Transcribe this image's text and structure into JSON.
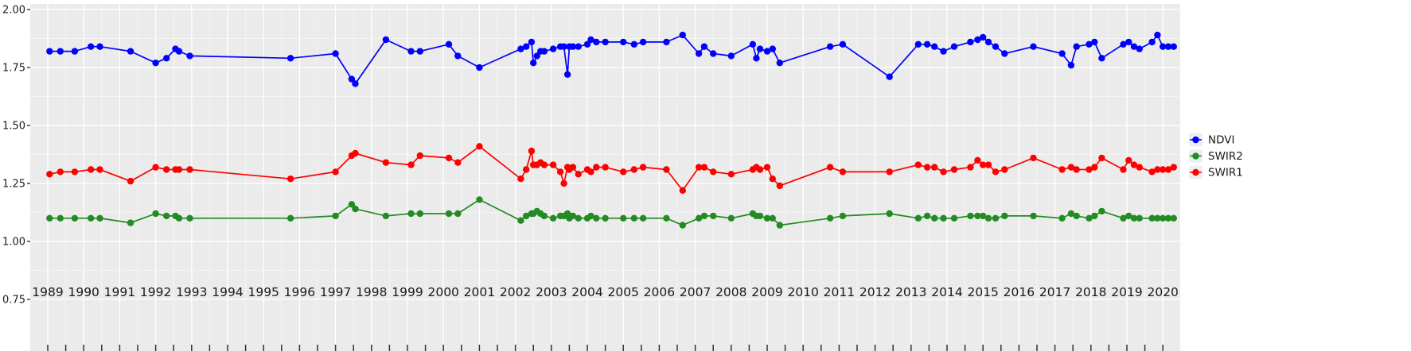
{
  "chart_data": {
    "type": "line",
    "title": "",
    "x": [
      1989.05,
      1989.35,
      1989.75,
      1990.2,
      1990.45,
      1991.3,
      1992.0,
      1992.3,
      1992.55,
      1992.65,
      1992.95,
      1995.75,
      1997.0,
      1997.45,
      1997.55,
      1998.4,
      1999.1,
      1999.35,
      2000.15,
      2000.4,
      2001.0,
      2002.15,
      2002.3,
      2002.45,
      2002.5,
      2002.6,
      2002.7,
      2002.8,
      2003.05,
      2003.25,
      2003.35,
      2003.45,
      2003.5,
      2003.6,
      2003.75,
      2004.0,
      2004.1,
      2004.25,
      2004.5,
      2005.0,
      2005.3,
      2005.55,
      2006.2,
      2006.65,
      2007.1,
      2007.25,
      2007.5,
      2008.0,
      2008.6,
      2008.7,
      2008.8,
      2009.0,
      2009.15,
      2009.35,
      2010.75,
      2011.1,
      2012.4,
      2013.2,
      2013.45,
      2013.65,
      2013.9,
      2014.2,
      2014.65,
      2014.85,
      2015.0,
      2015.15,
      2015.35,
      2015.6,
      2016.4,
      2017.2,
      2017.45,
      2017.6,
      2017.95,
      2018.1,
      2018.3,
      2018.9,
      2019.05,
      2019.2,
      2019.35,
      2019.7,
      2019.85,
      2020.0,
      2020.15,
      2020.3
    ],
    "series": [
      {
        "name": "NDVI",
        "color": "#0000FF",
        "values": [
          1.82,
          1.82,
          1.82,
          1.84,
          1.84,
          1.82,
          1.77,
          1.79,
          1.83,
          1.82,
          1.8,
          1.79,
          1.81,
          1.7,
          1.68,
          1.87,
          1.82,
          1.82,
          1.85,
          1.8,
          1.75,
          1.83,
          1.84,
          1.86,
          1.77,
          1.8,
          1.82,
          1.82,
          1.83,
          1.84,
          1.84,
          1.72,
          1.84,
          1.84,
          1.84,
          1.85,
          1.87,
          1.86,
          1.86,
          1.86,
          1.85,
          1.86,
          1.86,
          1.89,
          1.81,
          1.84,
          1.81,
          1.8,
          1.85,
          1.79,
          1.83,
          1.82,
          1.83,
          1.77,
          1.84,
          1.85,
          1.71,
          1.85,
          1.85,
          1.84,
          1.82,
          1.84,
          1.86,
          1.87,
          1.88,
          1.86,
          1.84,
          1.81,
          1.84,
          1.81,
          1.76,
          1.84,
          1.85,
          1.86,
          1.79,
          1.85,
          1.86,
          1.84,
          1.83,
          1.86,
          1.89,
          1.84,
          1.84,
          1.84
        ]
      },
      {
        "name": "SWIR2",
        "color": "#228B22",
        "values": [
          1.1,
          1.1,
          1.1,
          1.1,
          1.1,
          1.08,
          1.12,
          1.11,
          1.11,
          1.1,
          1.1,
          1.1,
          1.11,
          1.16,
          1.14,
          1.11,
          1.12,
          1.12,
          1.12,
          1.12,
          1.18,
          1.09,
          1.11,
          1.12,
          1.12,
          1.13,
          1.12,
          1.11,
          1.1,
          1.11,
          1.11,
          1.12,
          1.1,
          1.11,
          1.1,
          1.1,
          1.11,
          1.1,
          1.1,
          1.1,
          1.1,
          1.1,
          1.1,
          1.07,
          1.1,
          1.11,
          1.11,
          1.1,
          1.12,
          1.11,
          1.11,
          1.1,
          1.1,
          1.07,
          1.1,
          1.11,
          1.12,
          1.1,
          1.11,
          1.1,
          1.1,
          1.1,
          1.11,
          1.11,
          1.11,
          1.1,
          1.1,
          1.11,
          1.11,
          1.1,
          1.12,
          1.11,
          1.1,
          1.11,
          1.13,
          1.1,
          1.11,
          1.1,
          1.1,
          1.1,
          1.1,
          1.1,
          1.1,
          1.1
        ]
      },
      {
        "name": "SWIR1",
        "color": "#FF0000",
        "values": [
          1.29,
          1.3,
          1.3,
          1.31,
          1.31,
          1.26,
          1.32,
          1.31,
          1.31,
          1.31,
          1.31,
          1.27,
          1.3,
          1.37,
          1.38,
          1.34,
          1.33,
          1.37,
          1.36,
          1.34,
          1.41,
          1.27,
          1.31,
          1.39,
          1.33,
          1.33,
          1.34,
          1.33,
          1.33,
          1.3,
          1.25,
          1.32,
          1.31,
          1.32,
          1.29,
          1.31,
          1.3,
          1.32,
          1.32,
          1.3,
          1.31,
          1.32,
          1.31,
          1.22,
          1.32,
          1.32,
          1.3,
          1.29,
          1.31,
          1.32,
          1.31,
          1.32,
          1.27,
          1.24,
          1.32,
          1.3,
          1.3,
          1.33,
          1.32,
          1.32,
          1.3,
          1.31,
          1.32,
          1.35,
          1.33,
          1.33,
          1.3,
          1.31,
          1.36,
          1.31,
          1.32,
          1.31,
          1.31,
          1.32,
          1.36,
          1.31,
          1.35,
          1.33,
          1.32,
          1.3,
          1.31,
          1.31,
          1.31,
          1.32
        ]
      }
    ],
    "x_axis": {
      "tick_labels": [
        "1989",
        "1990",
        "1991",
        "1992",
        "1993",
        "1994",
        "1995",
        "1996",
        "1997",
        "1998",
        "1999",
        "2000",
        "2001",
        "2002",
        "2003",
        "2004",
        "2005",
        "2006",
        "2007",
        "2008",
        "2009",
        "2010",
        "2011",
        "2012",
        "2013",
        "2014",
        "2015",
        "2016",
        "2017",
        "2018",
        "2019",
        "2020"
      ],
      "range": [
        1988.5,
        2020.5
      ]
    },
    "y_axis": {
      "ticks": [
        2.0,
        1.75,
        1.5,
        1.25,
        1.0,
        0.75
      ],
      "tick_labels": [
        "2.00",
        "1.75",
        "1.50",
        "1.25",
        "1.00",
        "0.75"
      ],
      "range": [
        0.75,
        2.0
      ]
    },
    "legend": {
      "position": "right",
      "entries": [
        "NDVI",
        "SWIR2",
        "SWIR1"
      ]
    },
    "grid": true,
    "style": {
      "panel_bg": "#EBEBEB",
      "grid_major_color": "#FFFFFF",
      "grid_minor_color": "#F7F7F7",
      "axis_text_color": "#1A1A1A",
      "tick_color": "#333333",
      "legend_key_bg": "#EFEFEF"
    }
  }
}
